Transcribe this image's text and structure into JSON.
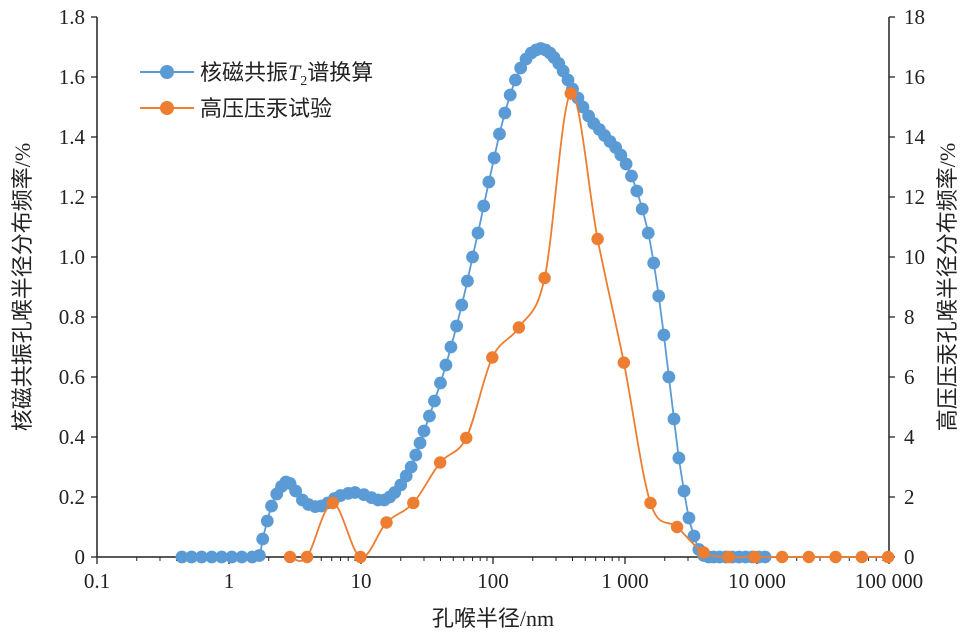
{
  "chart_data": {
    "type": "line",
    "xlabel": "孔喉半径/nm",
    "x_scale": "log",
    "xlim": [
      0.1,
      100000
    ],
    "x_ticks": [
      0.1,
      1,
      10,
      100,
      1000,
      10000,
      100000
    ],
    "x_tick_labels": [
      "0.1",
      "1",
      "10",
      "100",
      "1 000",
      "10 000",
      "100 000"
    ],
    "ylabel_left": "核磁共振孔喉半径分布频率/%",
    "ylim_left": [
      0,
      1.8
    ],
    "y_ticks_left": [
      "0",
      "0.2",
      "0.4",
      "0.6",
      "0.8",
      "1.0",
      "1.2",
      "1.4",
      "1.6",
      "1.8"
    ],
    "ylabel_right": "高压压汞孔喉半径分布频率/%",
    "ylim_right": [
      0,
      18
    ],
    "y_ticks_right": [
      "0",
      "2",
      "4",
      "6",
      "8",
      "10",
      "12",
      "14",
      "16",
      "18"
    ],
    "grid": false,
    "legend_position": "top-left",
    "series": [
      {
        "name": "核磁共振T2谱换算",
        "legend_main": "核磁共振",
        "legend_italic": "T",
        "legend_sub": "2",
        "legend_tail": "谱换算",
        "color": "#5b9bd5",
        "axis": "left",
        "points": [
          [
            0.44,
            0
          ],
          [
            0.52,
            0
          ],
          [
            0.62,
            0
          ],
          [
            0.74,
            0
          ],
          [
            0.88,
            0
          ],
          [
            1.05,
            0
          ],
          [
            1.25,
            0
          ],
          [
            1.5,
            0
          ],
          [
            1.7,
            0.005
          ],
          [
            1.8,
            0.06
          ],
          [
            1.95,
            0.12
          ],
          [
            2.1,
            0.17
          ],
          [
            2.3,
            0.21
          ],
          [
            2.5,
            0.235
          ],
          [
            2.7,
            0.25
          ],
          [
            2.9,
            0.245
          ],
          [
            3.2,
            0.22
          ],
          [
            3.6,
            0.19
          ],
          [
            4.0,
            0.175
          ],
          [
            4.5,
            0.168
          ],
          [
            5.0,
            0.17
          ],
          [
            5.6,
            0.18
          ],
          [
            6.3,
            0.195
          ],
          [
            7.0,
            0.205
          ],
          [
            8.0,
            0.212
          ],
          [
            9.0,
            0.215
          ],
          [
            10.5,
            0.208
          ],
          [
            12,
            0.198
          ],
          [
            13.5,
            0.19
          ],
          [
            15,
            0.19
          ],
          [
            16.5,
            0.2
          ],
          [
            18,
            0.215
          ],
          [
            20,
            0.24
          ],
          [
            22,
            0.27
          ],
          [
            24,
            0.3
          ],
          [
            26,
            0.34
          ],
          [
            28,
            0.38
          ],
          [
            30,
            0.42
          ],
          [
            33,
            0.47
          ],
          [
            36,
            0.52
          ],
          [
            40,
            0.58
          ],
          [
            44,
            0.64
          ],
          [
            48,
            0.7
          ],
          [
            53,
            0.77
          ],
          [
            58,
            0.84
          ],
          [
            64,
            0.92
          ],
          [
            70,
            1.0
          ],
          [
            77,
            1.08
          ],
          [
            85,
            1.17
          ],
          [
            93,
            1.25
          ],
          [
            102,
            1.33
          ],
          [
            112,
            1.41
          ],
          [
            123,
            1.48
          ],
          [
            135,
            1.54
          ],
          [
            148,
            1.59
          ],
          [
            162,
            1.63
          ],
          [
            178,
            1.66
          ],
          [
            195,
            1.68
          ],
          [
            212,
            1.69
          ],
          [
            230,
            1.695
          ],
          [
            250,
            1.69
          ],
          [
            270,
            1.68
          ],
          [
            290,
            1.665
          ],
          [
            315,
            1.645
          ],
          [
            340,
            1.62
          ],
          [
            370,
            1.59
          ],
          [
            400,
            1.56
          ],
          [
            440,
            1.53
          ],
          [
            480,
            1.5
          ],
          [
            530,
            1.47
          ],
          [
            580,
            1.445
          ],
          [
            640,
            1.425
          ],
          [
            700,
            1.405
          ],
          [
            770,
            1.385
          ],
          [
            850,
            1.365
          ],
          [
            930,
            1.34
          ],
          [
            1020,
            1.31
          ],
          [
            1120,
            1.27
          ],
          [
            1230,
            1.22
          ],
          [
            1350,
            1.16
          ],
          [
            1500,
            1.08
          ],
          [
            1650,
            0.98
          ],
          [
            1800,
            0.87
          ],
          [
            1970,
            0.74
          ],
          [
            2150,
            0.6
          ],
          [
            2350,
            0.46
          ],
          [
            2560,
            0.33
          ],
          [
            2800,
            0.22
          ],
          [
            3050,
            0.13
          ],
          [
            3330,
            0.07
          ],
          [
            3630,
            0.025
          ],
          [
            3950,
            0.005
          ],
          [
            4300,
            0
          ],
          [
            4700,
            0
          ],
          [
            5200,
            0
          ],
          [
            5800,
            0
          ],
          [
            6500,
            0
          ],
          [
            7300,
            0
          ],
          [
            8200,
            0
          ],
          [
            9200,
            0
          ],
          [
            10300,
            0
          ],
          [
            11500,
            0
          ]
        ]
      },
      {
        "name": "高压压汞试验",
        "color": "#ed7d31",
        "axis": "right",
        "points": [
          [
            2.9,
            0
          ],
          [
            3.9,
            0
          ],
          [
            6.1,
            1.8
          ],
          [
            9.9,
            0
          ],
          [
            15.6,
            1.15
          ],
          [
            24.9,
            1.8
          ],
          [
            39.8,
            3.15
          ],
          [
            62.7,
            3.97
          ],
          [
            98.8,
            6.65
          ],
          [
            157,
            7.65
          ],
          [
            246,
            9.3
          ],
          [
            388,
            15.45
          ],
          [
            620,
            10.6
          ],
          [
            980,
            6.48
          ],
          [
            1560,
            1.8
          ],
          [
            2480,
            1.0
          ],
          [
            3940,
            0.15
          ],
          [
            6100,
            0
          ],
          [
            9600,
            0
          ],
          [
            15500,
            0
          ],
          [
            24700,
            0
          ],
          [
            39400,
            0
          ],
          [
            62200,
            0
          ],
          [
            98500,
            0
          ]
        ]
      }
    ]
  }
}
